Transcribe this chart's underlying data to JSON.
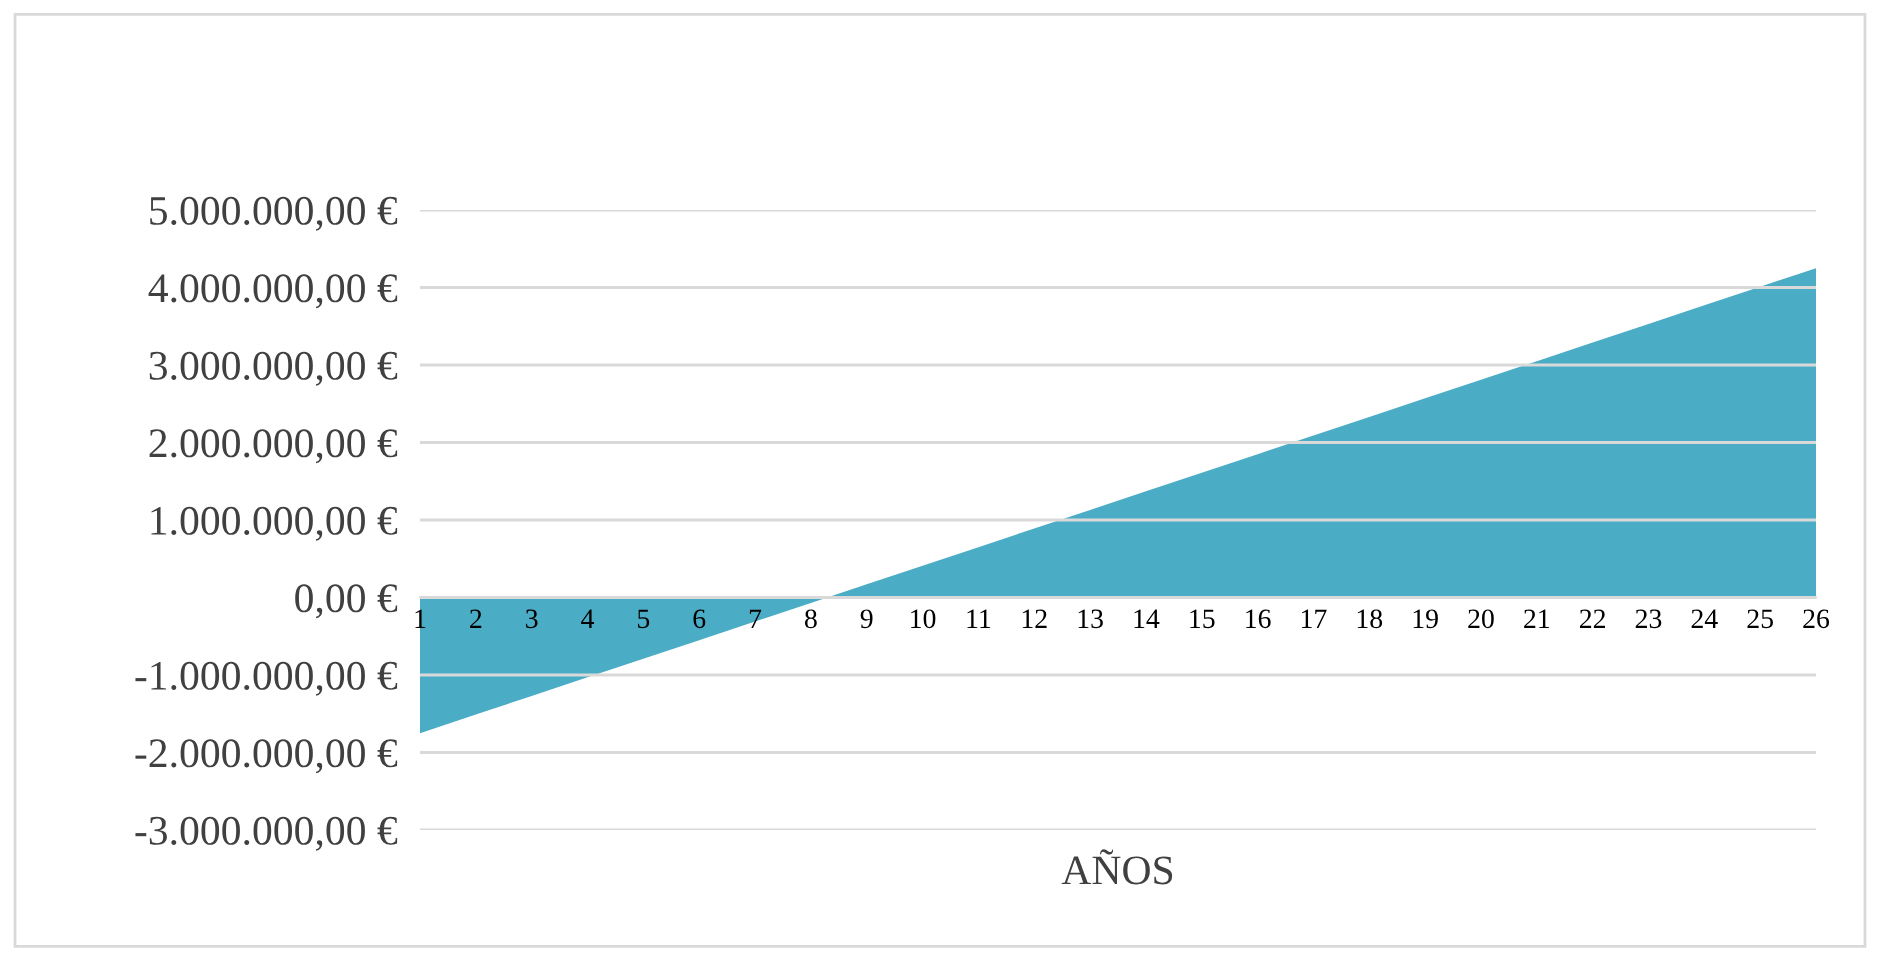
{
  "chart_data": {
    "type": "area",
    "xlabel": "AÑOS",
    "categories": [
      "1",
      "2",
      "3",
      "4",
      "5",
      "6",
      "7",
      "8",
      "9",
      "10",
      "11",
      "12",
      "13",
      "14",
      "15",
      "16",
      "17",
      "18",
      "19",
      "20",
      "21",
      "22",
      "23",
      "24",
      "25",
      "26"
    ],
    "series": [
      {
        "color": "#4bacc6",
        "values": [
          -1750000,
          -1510000,
          -1270000,
          -1030000,
          -790000,
          -550000,
          -310000,
          -70000,
          170000,
          410000,
          650000,
          890000,
          1130000,
          1370000,
          1610000,
          1850000,
          2090000,
          2330000,
          2570000,
          2810000,
          3050000,
          3290000,
          3530000,
          3770000,
          4010000,
          4250000
        ]
      }
    ],
    "ylim": [
      -3000000,
      5000000
    ],
    "yticks": [
      {
        "value": -3000000,
        "label": "-3.000.000,00 €"
      },
      {
        "value": -2000000,
        "label": "-2.000.000,00 €"
      },
      {
        "value": -1000000,
        "label": "-1.000.000,00 €"
      },
      {
        "value": 0,
        "label": "0,00 €"
      },
      {
        "value": 1000000,
        "label": "1.000.000,00 €"
      },
      {
        "value": 2000000,
        "label": "2.000.000,00 €"
      },
      {
        "value": 3000000,
        "label": "3.000.000,00 €"
      },
      {
        "value": 4000000,
        "label": "4.000.000,00 €"
      },
      {
        "value": 5000000,
        "label": "5.000.000,00 €"
      }
    ],
    "grid": "y",
    "legend": false
  }
}
